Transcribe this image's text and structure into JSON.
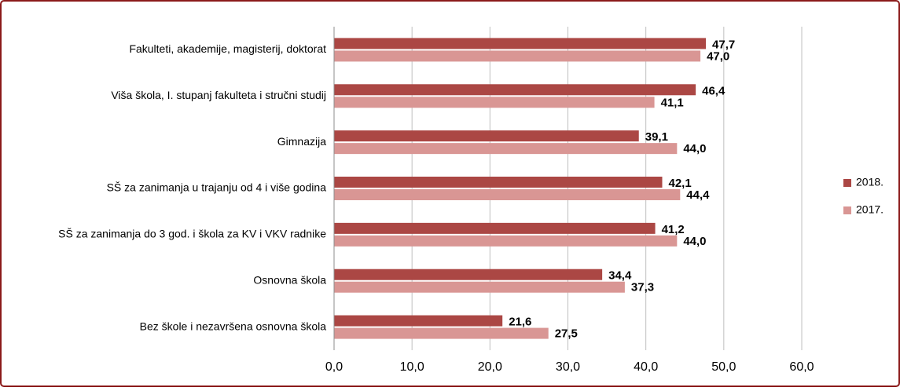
{
  "chart_data": {
    "type": "bar",
    "orientation": "horizontal",
    "categories": [
      "Fakulteti, akademije, magisterij, doktorat",
      "Viša škola, I. stupanj fakulteta i stručni studij",
      "Gimnazija",
      "SŠ za zanimanja u trajanju od 4 i više godina",
      "SŠ za zanimanja do 3 god. i škola za KV i VKV radnike",
      "Osnovna škola",
      "Bez škole i nezavršena osnovna škola"
    ],
    "series": [
      {
        "name": "2018.",
        "color": "#ab4744",
        "values": [
          47.7,
          46.4,
          39.1,
          42.1,
          41.2,
          34.4,
          21.6
        ],
        "value_labels": [
          "47,7",
          "46,4",
          "39,1",
          "42,1",
          "41,2",
          "34,4",
          "21,6"
        ]
      },
      {
        "name": "2017.",
        "color": "#d99694",
        "values": [
          47.0,
          41.1,
          44.0,
          44.4,
          44.0,
          37.3,
          27.5
        ],
        "value_labels": [
          "47,0",
          "41,1",
          "44,0",
          "44,4",
          "44,0",
          "37,3",
          "27,5"
        ]
      }
    ],
    "xlim": [
      0,
      60
    ],
    "xticks": [
      {
        "value": 0,
        "label": "0,0"
      },
      {
        "value": 10,
        "label": "10,0"
      },
      {
        "value": 20,
        "label": "20,0"
      },
      {
        "value": 30,
        "label": "30,0"
      },
      {
        "value": 40,
        "label": "40,0"
      },
      {
        "value": 50,
        "label": "50,0"
      },
      {
        "value": 60,
        "label": "60,0"
      }
    ],
    "grid": true,
    "legend": "right"
  }
}
